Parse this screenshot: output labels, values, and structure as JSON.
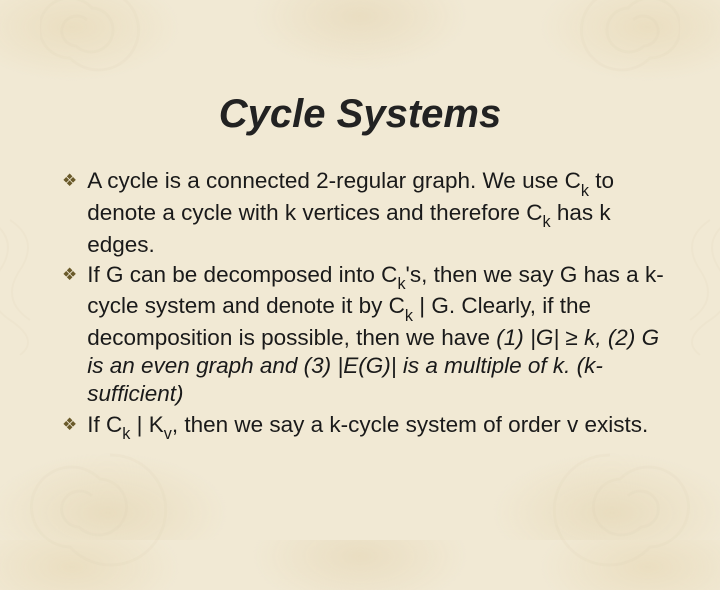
{
  "title": "Cycle Systems",
  "bullets": [
    {
      "parts": [
        {
          "t": "A cycle is a connected 2-regular graph.  We use C"
        },
        {
          "t": "k",
          "sub": true
        },
        {
          "t": " to denote a cycle with k vertices and therefore C"
        },
        {
          "t": "k",
          "sub": true
        },
        {
          "t": " has k edges."
        }
      ]
    },
    {
      "parts": [
        {
          "t": "If G can be decomposed into C"
        },
        {
          "t": "k",
          "sub": true
        },
        {
          "t": "'s, then we say G has a k-cycle system and denote it by C"
        },
        {
          "t": "k",
          "sub": true
        },
        {
          "t": " | G.  Clearly, if the decomposition is possible, then we have "
        },
        {
          "t": "(1) |G| ",
          "italic": true
        },
        {
          "t": "≥",
          "italic": true
        },
        {
          "t": " k, (2) G is an even graph and (3) |E(G)| is a multiple of k. (k-sufficient)",
          "italic": true
        }
      ]
    },
    {
      "parts": [
        {
          "t": "If C"
        },
        {
          "t": "k",
          "sub": true
        },
        {
          "t": " | K"
        },
        {
          "t": "v",
          "sub": true
        },
        {
          "t": ", then we say a k-cycle system of order v exists."
        }
      ]
    }
  ],
  "colors": {
    "background": "#f1e9d4",
    "bullet": "#6a5a2a",
    "text": "#1a1a1a",
    "watermark": "#d9cdb0"
  },
  "typography": {
    "title_fontsize": 40,
    "body_fontsize": 22.5,
    "font_family": "Arial"
  },
  "bullet_glyph": "❖"
}
